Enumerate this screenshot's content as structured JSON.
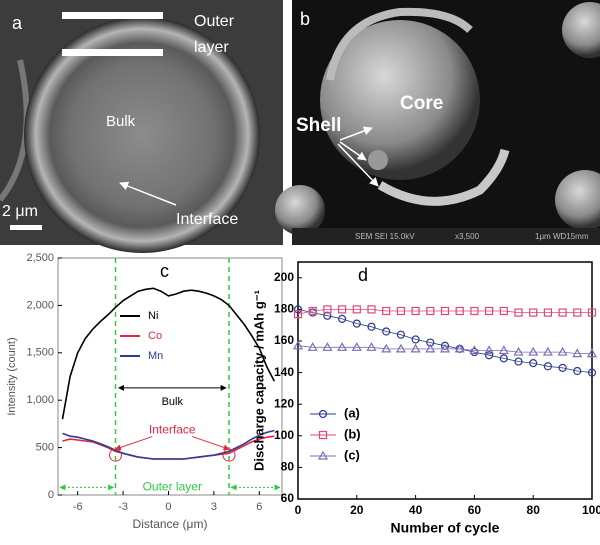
{
  "panels": [
    {
      "label": "a",
      "outer_label": [
        "Outer",
        "layer"
      ],
      "bulk": "Bulk",
      "interface": "Interface",
      "scale": "2 μm"
    },
    {
      "label": "b",
      "core": "Core",
      "shell": "Shell",
      "footer": [
        "SEM SEI 15.0kV",
        "x3,500",
        "1μm WD15mm"
      ]
    }
  ],
  "chart_data": [
    {
      "type": "line",
      "label": "c",
      "x_label": "Distance (μm)",
      "y_label": "Intensity (count)",
      "x": [
        -7,
        -6.5,
        -6,
        -5.5,
        -5,
        -4.5,
        -4,
        -3.5,
        -3,
        -2.5,
        -2,
        -1.5,
        -1,
        -0.5,
        0,
        0.5,
        1,
        1.5,
        2,
        2.5,
        3,
        3.5,
        4,
        4.5,
        5,
        5.5,
        6,
        6.5,
        7
      ],
      "series": [
        {
          "name": "Ni",
          "color": "#000000",
          "values": [
            800,
            1250,
            1500,
            1650,
            1750,
            1830,
            1900,
            1980,
            2050,
            2100,
            2150,
            2170,
            2180,
            2150,
            2100,
            2120,
            2150,
            2160,
            2150,
            2130,
            2100,
            2060,
            2000,
            1900,
            1800,
            1680,
            1550,
            1350,
            1200
          ]
        },
        {
          "name": "Co",
          "color": "#e8243c",
          "values": [
            570,
            590,
            580,
            570,
            560,
            530,
            500,
            460,
            440,
            420,
            400,
            390,
            380,
            380,
            380,
            380,
            380,
            390,
            400,
            410,
            420,
            430,
            440,
            480,
            520,
            560,
            590,
            610,
            620
          ]
        },
        {
          "name": "Mn",
          "color": "#2a3d9a",
          "values": [
            650,
            620,
            610,
            590,
            570,
            540,
            510,
            470,
            440,
            420,
            400,
            390,
            380,
            380,
            380,
            380,
            380,
            390,
            400,
            410,
            420,
            440,
            460,
            500,
            540,
            590,
            630,
            660,
            680
          ]
        }
      ],
      "xlim": [
        -7.3,
        7.5
      ],
      "xticks": [
        -6,
        -3,
        0,
        3,
        6
      ],
      "ylim": [
        0,
        2500
      ],
      "yticks": [
        0,
        500,
        {
          "value": 1000,
          "label": "1,000"
        },
        {
          "value": 1500,
          "label": "1,500"
        },
        {
          "value": 2000,
          "label": "2,000"
        },
        {
          "value": 2500,
          "label": "2,500"
        }
      ],
      "vlines": [
        -3.5,
        4
      ],
      "legend": "upper center",
      "annotations": {
        "bulk": "Bulk",
        "interface": "Interface",
        "outer_layer": "Outer layer"
      }
    },
    {
      "type": "line",
      "label": "d",
      "x_label": "Number of cycle",
      "y_label": "Discharge capacity / mAh g⁻¹",
      "x": [
        0,
        5,
        10,
        15,
        20,
        25,
        30,
        35,
        40,
        45,
        50,
        55,
        60,
        65,
        70,
        75,
        80,
        85,
        90,
        95,
        100
      ],
      "series": [
        {
          "name": "(a)",
          "color": "#2b3a8c",
          "marker": "circle",
          "values": [
            180,
            178,
            176,
            174,
            171,
            169,
            166,
            164,
            161,
            159,
            157,
            155,
            153,
            151,
            149,
            147,
            146,
            144,
            143,
            141,
            140
          ]
        },
        {
          "name": "(b)",
          "color": "#e0457b",
          "marker": "square",
          "values": [
            177,
            179,
            180,
            180,
            180,
            180,
            179,
            179,
            179,
            179,
            179,
            179,
            179,
            179,
            179,
            178,
            178,
            178,
            178,
            178,
            178
          ]
        },
        {
          "name": "(c)",
          "color": "#7a6fb8",
          "marker": "triangle",
          "values": [
            157,
            156,
            156,
            156,
            156,
            156,
            155,
            155,
            155,
            155,
            155,
            155,
            154,
            154,
            154,
            153,
            153,
            153,
            153,
            152,
            152
          ]
        }
      ],
      "xlim": [
        0,
        100
      ],
      "xticks": [
        0,
        20,
        40,
        60,
        80,
        100
      ],
      "ylim": [
        60,
        210
      ],
      "yticks": [
        60,
        80,
        100,
        120,
        140,
        160,
        180,
        200
      ],
      "legend": "lower left"
    }
  ]
}
